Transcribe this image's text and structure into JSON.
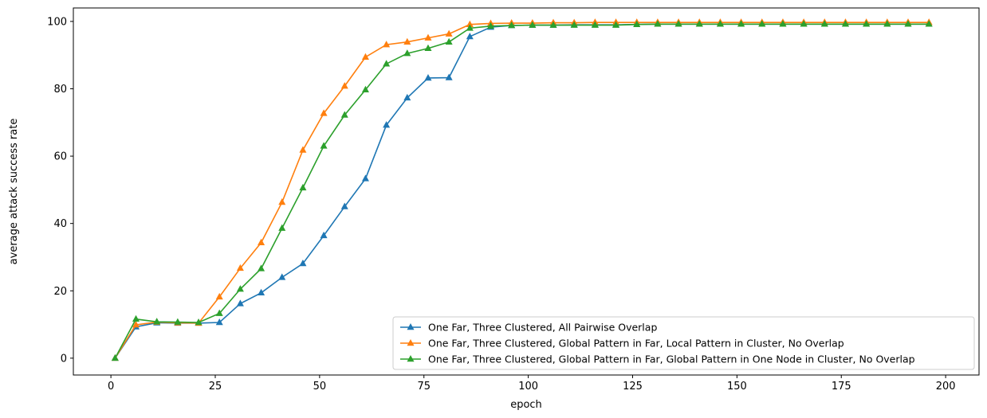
{
  "chart_data": {
    "type": "line",
    "xlabel": "epoch",
    "ylabel": "average attack success rate",
    "xlim": [
      -9,
      208
    ],
    "ylim": [
      -5,
      104
    ],
    "xticks": [
      0,
      25,
      50,
      75,
      100,
      125,
      150,
      175,
      200
    ],
    "yticks": [
      0,
      20,
      40,
      60,
      80,
      100
    ],
    "grid": false,
    "legend_position": "lower-right",
    "marker": "triangle-up",
    "x": [
      1,
      6,
      11,
      16,
      21,
      26,
      31,
      36,
      41,
      46,
      51,
      56,
      61,
      66,
      71,
      76,
      81,
      86,
      91,
      96,
      101,
      106,
      111,
      116,
      121,
      126,
      131,
      136,
      141,
      146,
      151,
      156,
      161,
      166,
      171,
      176,
      181,
      186,
      191,
      196
    ],
    "series": [
      {
        "name": "One Far, Three Clustered, All Pairwise Overlap",
        "color": "#1f77b4",
        "values": [
          0,
          9.3,
          10.5,
          10.4,
          10.4,
          10.6,
          16.2,
          19.4,
          24.0,
          28.1,
          36.4,
          45.0,
          53.3,
          69.2,
          77.3,
          83.2,
          83.3,
          95.5,
          98.3,
          98.8,
          98.9,
          98.9,
          99.0,
          99.0,
          99.0,
          99.1,
          99.2,
          99.2,
          99.2,
          99.2,
          99.2,
          99.2,
          99.2,
          99.2,
          99.2,
          99.2,
          99.2,
          99.2,
          99.2,
          99.2
        ]
      },
      {
        "name": "One Far, Three Clustered, Global Pattern in Far, Local Pattern in Cluster, No Overlap",
        "color": "#ff7f0e",
        "values": [
          0,
          9.9,
          10.7,
          10.5,
          10.4,
          18.2,
          26.7,
          34.3,
          46.3,
          61.8,
          72.7,
          80.8,
          89.4,
          93.1,
          93.9,
          95.1,
          96.3,
          99.1,
          99.4,
          99.5,
          99.5,
          99.6,
          99.6,
          99.7,
          99.7,
          99.7,
          99.7,
          99.7,
          99.7,
          99.7,
          99.7,
          99.7,
          99.7,
          99.7,
          99.7,
          99.7,
          99.7,
          99.7,
          99.7,
          99.7
        ]
      },
      {
        "name": "One Far, Three Clustered, Global Pattern in Far, Global Pattern in One Node in Cluster, No Overlap",
        "color": "#2ca02c",
        "values": [
          0,
          11.6,
          10.8,
          10.7,
          10.6,
          13.3,
          20.5,
          26.6,
          38.6,
          50.6,
          63.0,
          72.2,
          79.7,
          87.4,
          90.5,
          92.0,
          93.9,
          98.0,
          98.6,
          98.8,
          98.9,
          98.9,
          98.9,
          98.9,
          98.9,
          99.1,
          99.2,
          99.2,
          99.2,
          99.2,
          99.2,
          99.2,
          99.2,
          99.2,
          99.2,
          99.2,
          99.2,
          99.2,
          99.2,
          99.2
        ]
      }
    ]
  }
}
